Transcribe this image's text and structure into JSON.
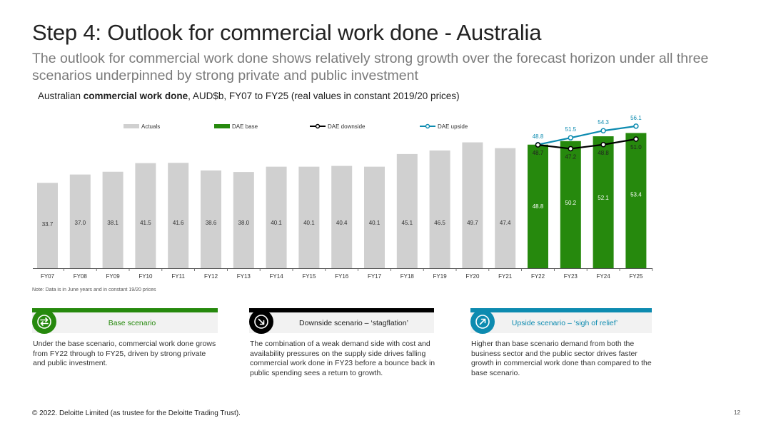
{
  "slide": {
    "title": "Step 4: Outlook for commercial work done - Australia",
    "subtitle": "The outlook for commercial work done shows relatively strong growth over the forecast horizon under all three scenarios underpinned by strong private and public investment",
    "chart_heading_pre": "Australian ",
    "chart_heading_bold": "commercial work done",
    "chart_heading_post": ", AUD$b, FY07 to FY25 (real values in constant 2019/20 prices)",
    "note": "Note: Data is in June years and in constant 19/20 prices",
    "footer": "© 2022. Deloitte Limited (as trustee for the Deloitte Trading Trust).",
    "page_number": "12"
  },
  "scenarios": [
    {
      "title": "Base scenario",
      "text": "Under the base scenario, commercial work done grows from FY22 through to FY25, driven by strong private and public investment.",
      "color": "#26890d",
      "icon": "swap-arrows-icon"
    },
    {
      "title": "Downside scenario – ‘stagflation’",
      "text": "The combination of a weak demand side with cost and availability pressures on the supply side drives falling commercial work done in FY23 before a bounce back in public spending sees a return to growth.",
      "color": "#000000",
      "icon": "arrow-down-right-icon"
    },
    {
      "title": "Upside scenario – ‘sigh of relief’",
      "text": "Higher than base scenario demand from both the business sector and the public sector drives faster growth in commercial work done than compared to the base scenario.",
      "color": "#0d8bb0",
      "icon": "arrow-up-right-icon"
    }
  ],
  "chart_data": {
    "type": "bar",
    "categories": [
      "FY07",
      "FY08",
      "FY09",
      "FY10",
      "FY11",
      "FY12",
      "FY13",
      "FY14",
      "FY15",
      "FY16",
      "FY17",
      "FY18",
      "FY19",
      "FY20",
      "FY21",
      "FY22",
      "FY23",
      "FY24",
      "FY25"
    ],
    "series": [
      {
        "name": "Actuals",
        "type": "bar",
        "color": "#d0d0d0",
        "values": [
          33.7,
          37.0,
          38.1,
          41.5,
          41.6,
          38.6,
          38.0,
          40.1,
          40.1,
          40.4,
          40.1,
          45.1,
          46.5,
          49.7,
          47.4,
          null,
          null,
          null,
          null
        ]
      },
      {
        "name": "DAE base",
        "type": "bar",
        "color": "#26890d",
        "values": [
          null,
          null,
          null,
          null,
          null,
          null,
          null,
          null,
          null,
          null,
          null,
          null,
          null,
          null,
          null,
          48.8,
          50.2,
          52.1,
          53.4
        ]
      },
      {
        "name": "DAE downside",
        "type": "line",
        "color": "#000000",
        "values": [
          null,
          null,
          null,
          null,
          null,
          null,
          null,
          null,
          null,
          null,
          null,
          null,
          null,
          null,
          null,
          48.7,
          47.2,
          48.8,
          51.0
        ]
      },
      {
        "name": "DAE upside",
        "type": "line",
        "color": "#0d8bb0",
        "values": [
          null,
          null,
          null,
          null,
          null,
          null,
          null,
          null,
          null,
          null,
          null,
          null,
          null,
          null,
          null,
          48.8,
          51.5,
          54.3,
          56.1
        ]
      }
    ],
    "title": "Australian commercial work done, AUD$b, FY07 to FY25 (real values in constant 2019/20 prices)",
    "xlabel": "",
    "ylabel": "",
    "ylim": [
      0,
      60
    ],
    "grid": false,
    "legend": "top"
  }
}
